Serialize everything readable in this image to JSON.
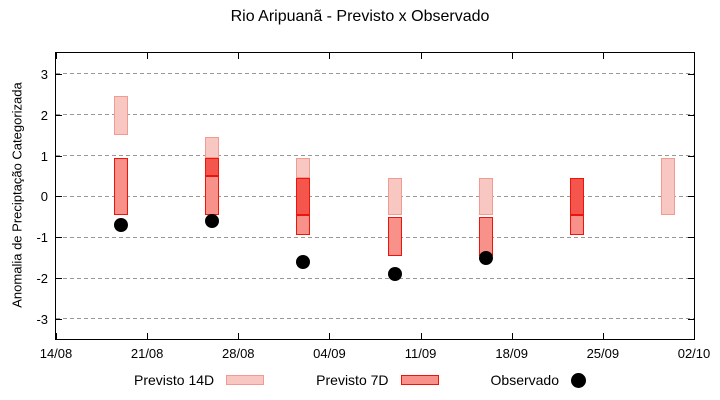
{
  "chart_data": {
    "type": "bar",
    "title": "Rio Aripuanã - Previsto x Observado",
    "xlabel": "",
    "ylabel": "Anomalia de Preciptação Categorizada",
    "ylim": [
      -3.49,
      3.51
    ],
    "yticks": [
      3,
      2,
      1,
      0,
      -1,
      -2,
      -3
    ],
    "grid": "horizontal-dashed",
    "grid_color": "#999999",
    "x_axis": {
      "tick_labels": [
        "14/08",
        "21/08",
        "28/08",
        "04/09",
        "11/09",
        "18/09",
        "25/09",
        "02/10"
      ],
      "tick_days": [
        0,
        7,
        14,
        21,
        28,
        35,
        42,
        49
      ],
      "range_days": 49
    },
    "legend_position": "bottom-center",
    "series": [
      {
        "name": "Previsto 14D",
        "type": "range-bar",
        "fill": "#f9c7c2",
        "border": "#f29b92",
        "bars": [
          {
            "date": "19/08",
            "day": 5,
            "low": 1.5,
            "high": 2.45
          },
          {
            "date": "26/08",
            "day": 12,
            "low": 0.5,
            "high": 1.45
          },
          {
            "date": "02/09",
            "day": 19,
            "low": -0.45,
            "high": 0.95
          },
          {
            "date": "09/09",
            "day": 26,
            "low": -0.45,
            "high": 0.45
          },
          {
            "date": "16/09",
            "day": 33,
            "low": -0.45,
            "high": 0.45
          },
          {
            "date": "23/09",
            "day": 40,
            "low": -0.45,
            "high": 0.45
          },
          {
            "date": "30/09",
            "day": 47,
            "low": -0.45,
            "high": 0.95
          }
        ]
      },
      {
        "name": "Previsto 7D",
        "type": "range-bar",
        "fill": "#f8918a",
        "border": "#ed1509",
        "overlap_fill": "#f4564e",
        "bars": [
          {
            "date": "19/08",
            "day": 5,
            "low": -0.45,
            "high": 0.95
          },
          {
            "date": "26/08",
            "day": 12,
            "low": -0.45,
            "high": 0.95
          },
          {
            "date": "02/09",
            "day": 19,
            "low": -0.95,
            "high": 0.45
          },
          {
            "date": "09/09",
            "day": 26,
            "low": -1.45,
            "high": -0.5
          },
          {
            "date": "16/09",
            "day": 33,
            "low": -1.45,
            "high": -0.5
          },
          {
            "date": "23/09",
            "day": 40,
            "low": -0.95,
            "high": 0.45
          }
        ]
      },
      {
        "name": "Observado",
        "type": "scatter",
        "color": "#000000",
        "points": [
          {
            "date": "19/08",
            "day": 5,
            "y": -0.7
          },
          {
            "date": "26/08",
            "day": 12,
            "y": -0.6
          },
          {
            "date": "02/09",
            "day": 19,
            "y": -1.6
          },
          {
            "date": "09/09",
            "day": 26,
            "y": -1.9
          },
          {
            "date": "16/09",
            "day": 33,
            "y": -1.5
          }
        ]
      }
    ]
  }
}
